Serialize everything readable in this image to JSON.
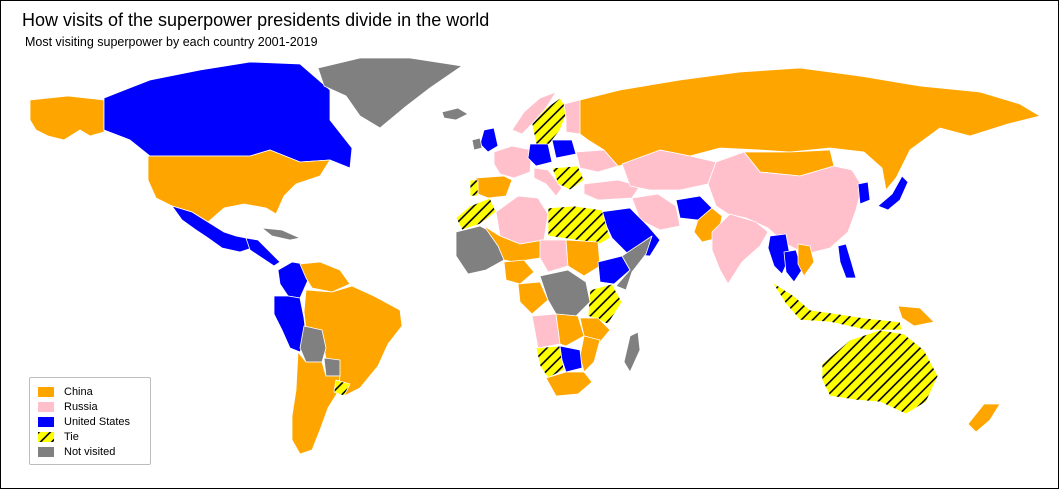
{
  "title": "How visits of the superpower presidents divide in the world",
  "subtitle": "Most visiting superpower by each country 2001-2019",
  "colors": {
    "china": "#ffa500",
    "russia": "#ffc0cb",
    "united_states": "#0000ff",
    "tie_fill": "#ffff00",
    "tie_hatch": "#000000",
    "not_visited": "#808080",
    "border": "#ffffff"
  },
  "legend": {
    "items": [
      {
        "key": "china",
        "label": "China",
        "color": "#ffa500",
        "pattern": "solid"
      },
      {
        "key": "russia",
        "label": "Russia",
        "color": "#ffc0cb",
        "pattern": "solid"
      },
      {
        "key": "united_states",
        "label": "United States",
        "color": "#0000ff",
        "pattern": "solid"
      },
      {
        "key": "tie",
        "label": "Tie",
        "color": "#ffff00",
        "pattern": "hatched"
      },
      {
        "key": "not_visited",
        "label": "Not visited",
        "color": "#808080",
        "pattern": "solid"
      }
    ]
  },
  "map_regions": [
    {
      "key": "alaska",
      "category": "china"
    },
    {
      "key": "canada",
      "category": "united_states"
    },
    {
      "key": "usa",
      "category": "china"
    },
    {
      "key": "greenland",
      "category": "not_visited"
    },
    {
      "key": "mexico",
      "category": "united_states"
    },
    {
      "key": "central_america",
      "category": "united_states"
    },
    {
      "key": "cuba",
      "category": "not_visited"
    },
    {
      "key": "colombia",
      "category": "united_states"
    },
    {
      "key": "venezuela",
      "category": "china"
    },
    {
      "key": "ecuador_peru",
      "category": "united_states"
    },
    {
      "key": "brazil",
      "category": "china"
    },
    {
      "key": "bolivia",
      "category": "not_visited"
    },
    {
      "key": "paraguay",
      "category": "not_visited"
    },
    {
      "key": "argentina",
      "category": "china"
    },
    {
      "key": "uruguay",
      "category": "tie"
    },
    {
      "key": "iceland",
      "category": "not_visited"
    },
    {
      "key": "uk",
      "category": "united_states"
    },
    {
      "key": "ireland",
      "category": "not_visited"
    },
    {
      "key": "norway",
      "category": "russia"
    },
    {
      "key": "sweden",
      "category": "tie"
    },
    {
      "key": "finland",
      "category": "russia"
    },
    {
      "key": "spain",
      "category": "china"
    },
    {
      "key": "portugal",
      "category": "tie"
    },
    {
      "key": "france",
      "category": "russia"
    },
    {
      "key": "germany",
      "category": "united_states"
    },
    {
      "key": "poland",
      "category": "united_states"
    },
    {
      "key": "italy",
      "category": "russia"
    },
    {
      "key": "balkans",
      "category": "tie"
    },
    {
      "key": "ukraine",
      "category": "russia"
    },
    {
      "key": "turkey",
      "category": "russia"
    },
    {
      "key": "russia",
      "category": "china"
    },
    {
      "key": "kazakhstan",
      "category": "russia"
    },
    {
      "key": "mongolia",
      "category": "china"
    },
    {
      "key": "china",
      "category": "russia"
    },
    {
      "key": "iran",
      "category": "russia"
    },
    {
      "key": "saudi_arabia",
      "category": "united_states"
    },
    {
      "key": "afghanistan",
      "category": "united_states"
    },
    {
      "key": "pakistan",
      "category": "china"
    },
    {
      "key": "india",
      "category": "russia"
    },
    {
      "key": "myanmar",
      "category": "united_states"
    },
    {
      "key": "thailand",
      "category": "united_states"
    },
    {
      "key": "vietnam",
      "category": "china"
    },
    {
      "key": "korea",
      "category": "united_states"
    },
    {
      "key": "japan",
      "category": "united_states"
    },
    {
      "key": "philippines",
      "category": "united_states"
    },
    {
      "key": "indonesia",
      "category": "tie"
    },
    {
      "key": "png",
      "category": "china"
    },
    {
      "key": "australia",
      "category": "tie"
    },
    {
      "key": "new_zealand",
      "category": "china"
    },
    {
      "key": "morocco",
      "category": "tie"
    },
    {
      "key": "algeria",
      "category": "russia"
    },
    {
      "key": "libya_egypt",
      "category": "tie"
    },
    {
      "key": "west_africa",
      "category": "not_visited"
    },
    {
      "key": "mali_niger",
      "category": "china"
    },
    {
      "key": "nigeria",
      "category": "china"
    },
    {
      "key": "chad",
      "category": "russia"
    },
    {
      "key": "sudan",
      "category": "china"
    },
    {
      "key": "ethiopia",
      "category": "united_states"
    },
    {
      "key": "somalia",
      "category": "not_visited"
    },
    {
      "key": "kenya",
      "category": "tie"
    },
    {
      "key": "congo",
      "category": "china"
    },
    {
      "key": "drc",
      "category": "not_visited"
    },
    {
      "key": "tanzania",
      "category": "china"
    },
    {
      "key": "angola",
      "category": "russia"
    },
    {
      "key": "zambia",
      "category": "china"
    },
    {
      "key": "mozambique",
      "category": "china"
    },
    {
      "key": "namibia",
      "category": "tie"
    },
    {
      "key": "botswana",
      "category": "united_states"
    },
    {
      "key": "south_africa",
      "category": "china"
    },
    {
      "key": "madagascar",
      "category": "not_visited"
    }
  ]
}
